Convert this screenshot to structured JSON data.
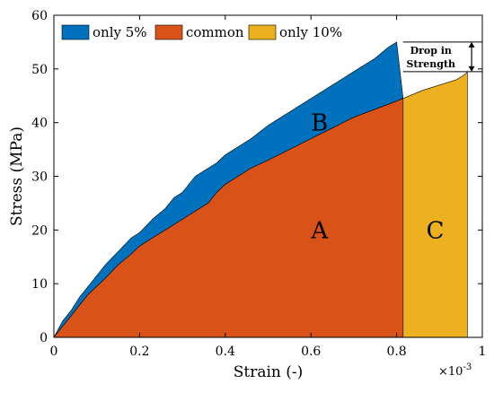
{
  "chart_data": {
    "type": "area",
    "title": "",
    "xlabel": "Strain (-)",
    "ylabel": "Stress (MPa)",
    "x_multiplier_label": "×10",
    "x_multiplier_exponent": "-3",
    "xlim": [
      0,
      1
    ],
    "ylim": [
      0,
      60
    ],
    "xticks": [
      0,
      0.2,
      0.4,
      0.6,
      0.8,
      1
    ],
    "xtick_labels": [
      "0",
      "0.2",
      "0.4",
      "0.6",
      "0.8",
      "1"
    ],
    "yticks": [
      0,
      10,
      20,
      30,
      40,
      50,
      60
    ],
    "ytick_labels": [
      "0",
      "10",
      "20",
      "30",
      "40",
      "50",
      "60"
    ],
    "legend_position": "top-left",
    "grid": false,
    "colors": {
      "only_5": "#0072bd",
      "common": "#d95319",
      "only_10": "#edb120"
    },
    "series": [
      {
        "name": "only 5%",
        "region_label": "B",
        "x": [
          0,
          0.02,
          0.04,
          0.06,
          0.08,
          0.1,
          0.12,
          0.15,
          0.18,
          0.2,
          0.23,
          0.26,
          0.28,
          0.3,
          0.33,
          0.36,
          0.38,
          0.4,
          0.43,
          0.46,
          0.5,
          0.55,
          0.6,
          0.65,
          0.7,
          0.75,
          0.78,
          0.8
        ],
        "y": [
          0,
          3,
          5,
          7.5,
          9.5,
          11.5,
          13.5,
          16,
          18.5,
          19.5,
          22,
          24,
          26,
          27,
          30,
          31.5,
          32.5,
          34,
          35.5,
          37,
          39.5,
          42,
          44.5,
          47,
          49.5,
          52,
          54,
          55
        ]
      },
      {
        "name": "common",
        "region_label": "A",
        "x": [
          0,
          0.02,
          0.04,
          0.06,
          0.08,
          0.1,
          0.12,
          0.15,
          0.18,
          0.2,
          0.23,
          0.26,
          0.28,
          0.3,
          0.33,
          0.36,
          0.38,
          0.4,
          0.43,
          0.46,
          0.5,
          0.55,
          0.6,
          0.65,
          0.7,
          0.75,
          0.8,
          0.815
        ],
        "y": [
          0,
          2,
          4,
          6,
          8,
          9.5,
          11,
          13.5,
          15.5,
          17,
          18.5,
          20,
          21,
          22,
          23.5,
          25,
          27,
          28.5,
          30,
          31.5,
          33,
          35,
          37,
          39,
          41,
          42.5,
          44,
          44.5
        ]
      },
      {
        "name": "only 10%",
        "region_label": "C",
        "x": [
          0.815,
          0.83,
          0.86,
          0.88,
          0.9,
          0.92,
          0.94,
          0.96,
          0.965
        ],
        "y": [
          44.5,
          45,
          46,
          46.5,
          47,
          47.5,
          48,
          49,
          49.5
        ]
      }
    ],
    "annotation": {
      "text_line1": "Drop in",
      "text_line2": "Strength",
      "y_top": 55,
      "y_bottom": 49.5
    }
  }
}
